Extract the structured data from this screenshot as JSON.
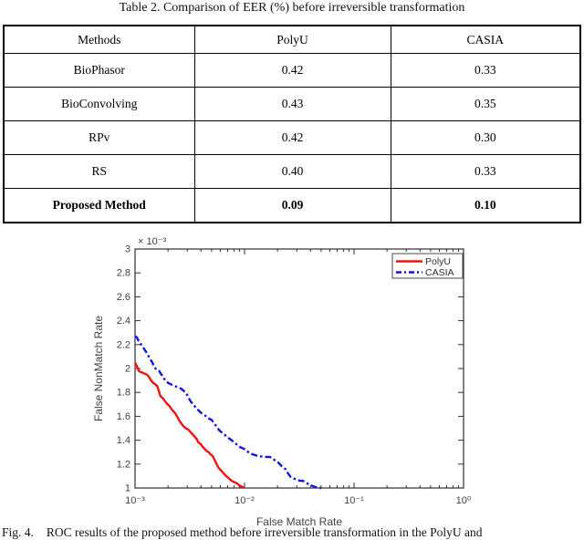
{
  "table": {
    "title": "Table 2. Comparison of EER (%) before irreversible transformation",
    "columns": [
      "Methods",
      "PolyU",
      "CASIA"
    ],
    "rows": [
      {
        "cells": [
          "BioPhasor",
          "0.42",
          "0.33"
        ],
        "bold": false
      },
      {
        "cells": [
          "BioConvolving",
          "0.43",
          "0.35"
        ],
        "bold": false
      },
      {
        "cells": [
          "RPv",
          "0.42",
          "0.30"
        ],
        "bold": false
      },
      {
        "cells": [
          "RS",
          "0.40",
          "0.33"
        ],
        "bold": false
      },
      {
        "cells": [
          "Proposed Method",
          "0.09",
          "0.10"
        ],
        "bold": true
      }
    ]
  },
  "chart_data": {
    "type": "line",
    "title": "",
    "xlabel": "False Match Rate",
    "ylabel": "False NonMatch Rate",
    "x_scale": "log",
    "xlim_exponents": [
      -3,
      0
    ],
    "xtick_exponents": [
      -3,
      -2,
      -1,
      0
    ],
    "xtick_labels": [
      "10⁻³",
      "10⁻²",
      "10⁻¹",
      "10⁰"
    ],
    "y_units_multiplier": 0.001,
    "y_multiplier_label": "× 10⁻³",
    "ylim_e3": [
      1,
      3
    ],
    "ytick_values": [
      1,
      1.2,
      1.4,
      1.6,
      1.8,
      2,
      2.2,
      2.4,
      2.6,
      2.8,
      3
    ],
    "ytick_labels": [
      "1",
      "1.2",
      "1.4",
      "1.6",
      "1.8",
      "2",
      "2.2",
      "2.4",
      "2.6",
      "2.8",
      "3"
    ],
    "grid": false,
    "legend_position": "top-right",
    "series": [
      {
        "name": "PolyU",
        "color": "#f31212",
        "style": "solid",
        "points": [
          [
            0.001,
            2.05
          ],
          [
            0.00104,
            2.02
          ],
          [
            0.00108,
            1.98
          ],
          [
            0.00113,
            1.97
          ],
          [
            0.0012,
            1.96
          ],
          [
            0.00128,
            1.95
          ],
          [
            0.00134,
            1.93
          ],
          [
            0.0014,
            1.9
          ],
          [
            0.00146,
            1.88
          ],
          [
            0.00152,
            1.87
          ],
          [
            0.0016,
            1.85
          ],
          [
            0.00165,
            1.81
          ],
          [
            0.0017,
            1.77
          ],
          [
            0.0018,
            1.75
          ],
          [
            0.0019,
            1.72
          ],
          [
            0.00198,
            1.7
          ],
          [
            0.00205,
            1.69
          ],
          [
            0.00215,
            1.66
          ],
          [
            0.00225,
            1.64
          ],
          [
            0.00235,
            1.62
          ],
          [
            0.00245,
            1.59
          ],
          [
            0.00255,
            1.56
          ],
          [
            0.00265,
            1.54
          ],
          [
            0.00275,
            1.52
          ],
          [
            0.0029,
            1.5
          ],
          [
            0.00305,
            1.49
          ],
          [
            0.0032,
            1.47
          ],
          [
            0.00335,
            1.45
          ],
          [
            0.0035,
            1.43
          ],
          [
            0.00365,
            1.41
          ],
          [
            0.0038,
            1.38
          ],
          [
            0.00395,
            1.37
          ],
          [
            0.0041,
            1.35
          ],
          [
            0.0043,
            1.33
          ],
          [
            0.0045,
            1.31
          ],
          [
            0.0047,
            1.3
          ],
          [
            0.0049,
            1.28
          ],
          [
            0.0051,
            1.27
          ],
          [
            0.0053,
            1.24
          ],
          [
            0.0055,
            1.21
          ],
          [
            0.0057,
            1.18
          ],
          [
            0.0059,
            1.16
          ],
          [
            0.0062,
            1.14
          ],
          [
            0.0065,
            1.12
          ],
          [
            0.0068,
            1.1
          ],
          [
            0.0072,
            1.08
          ],
          [
            0.0076,
            1.06
          ],
          [
            0.008,
            1.05
          ],
          [
            0.0085,
            1.04
          ],
          [
            0.009,
            1.02
          ],
          [
            0.0095,
            1.01
          ],
          [
            0.01,
            1.0
          ]
        ]
      },
      {
        "name": "CASIA",
        "color": "#1414e8",
        "style": "dash-dot",
        "points": [
          [
            0.001,
            2.27
          ],
          [
            0.00104,
            2.26
          ],
          [
            0.00108,
            2.23
          ],
          [
            0.00112,
            2.21
          ],
          [
            0.00118,
            2.18
          ],
          [
            0.00124,
            2.15
          ],
          [
            0.0013,
            2.12
          ],
          [
            0.00137,
            2.08
          ],
          [
            0.00144,
            2.05
          ],
          [
            0.0015,
            2.01
          ],
          [
            0.00158,
            1.99
          ],
          [
            0.00166,
            1.98
          ],
          [
            0.00174,
            1.95
          ],
          [
            0.00182,
            1.92
          ],
          [
            0.0019,
            1.9
          ],
          [
            0.002,
            1.88
          ],
          [
            0.0021,
            1.87
          ],
          [
            0.0022,
            1.86
          ],
          [
            0.00235,
            1.85
          ],
          [
            0.0025,
            1.84
          ],
          [
            0.00265,
            1.83
          ],
          [
            0.0028,
            1.81
          ],
          [
            0.00295,
            1.79
          ],
          [
            0.0031,
            1.75
          ],
          [
            0.00325,
            1.72
          ],
          [
            0.0034,
            1.7
          ],
          [
            0.0036,
            1.67
          ],
          [
            0.0038,
            1.65
          ],
          [
            0.004,
            1.63
          ],
          [
            0.00425,
            1.61
          ],
          [
            0.0045,
            1.6
          ],
          [
            0.00475,
            1.58
          ],
          [
            0.005,
            1.57
          ],
          [
            0.0053,
            1.54
          ],
          [
            0.0056,
            1.51
          ],
          [
            0.0059,
            1.48
          ],
          [
            0.0063,
            1.46
          ],
          [
            0.0067,
            1.44
          ],
          [
            0.0071,
            1.42
          ],
          [
            0.0076,
            1.4
          ],
          [
            0.0081,
            1.38
          ],
          [
            0.0086,
            1.36
          ],
          [
            0.0092,
            1.34
          ],
          [
            0.0098,
            1.33
          ],
          [
            0.0105,
            1.31
          ],
          [
            0.0112,
            1.29
          ],
          [
            0.012,
            1.28
          ],
          [
            0.013,
            1.27
          ],
          [
            0.014,
            1.265
          ],
          [
            0.015,
            1.26
          ],
          [
            0.016,
            1.26
          ],
          [
            0.017,
            1.26
          ],
          [
            0.018,
            1.25
          ],
          [
            0.019,
            1.23
          ],
          [
            0.0205,
            1.21
          ],
          [
            0.022,
            1.18
          ],
          [
            0.0235,
            1.16
          ],
          [
            0.025,
            1.12
          ],
          [
            0.0265,
            1.09
          ],
          [
            0.028,
            1.08
          ],
          [
            0.03,
            1.07
          ],
          [
            0.032,
            1.06
          ],
          [
            0.034,
            1.06
          ],
          [
            0.036,
            1.05
          ],
          [
            0.0385,
            1.03
          ],
          [
            0.041,
            1.02
          ],
          [
            0.044,
            1.01
          ],
          [
            0.047,
            1.0
          ],
          [
            0.05,
            1.0
          ]
        ]
      }
    ]
  },
  "caption": {
    "label": "Fig. 4.",
    "text": "ROC results of the proposed method before irreversible transformation in the PolyU and"
  }
}
